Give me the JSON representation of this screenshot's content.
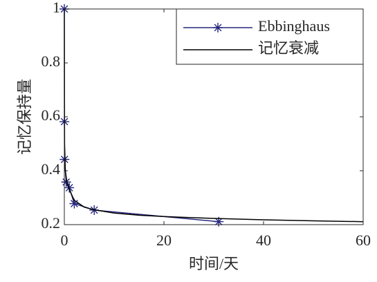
{
  "chart_data": {
    "type": "line",
    "x_label": "时间/天",
    "y_label": "记忆保持量",
    "series": [
      {
        "name": "Ebbinghaus",
        "color": "#26267f",
        "marker": "asterisk",
        "x": [
          0,
          0.0139,
          0.0417,
          0.367,
          1,
          2,
          6,
          31
        ],
        "values": [
          1,
          0.582,
          0.442,
          0.358,
          0.337,
          0.278,
          0.254,
          0.211
        ]
      },
      {
        "name": "记忆衰减",
        "color": "#000000",
        "x": [
          0,
          0.05,
          0.2,
          0.5,
          1,
          2,
          4,
          6,
          10,
          15,
          20,
          30,
          40,
          50,
          60
        ],
        "values": [
          1,
          0.5,
          0.4,
          0.36,
          0.33,
          0.29,
          0.265,
          0.255,
          0.243,
          0.235,
          0.23,
          0.223,
          0.218,
          0.214,
          0.211
        ]
      }
    ],
    "xlim": [
      0,
      60
    ],
    "xticks": [
      0,
      20,
      40,
      60
    ],
    "ylim": [
      0.2,
      1
    ],
    "yticks": [
      0.2,
      0.4,
      0.6,
      0.8,
      1
    ],
    "legend": "top-right"
  }
}
